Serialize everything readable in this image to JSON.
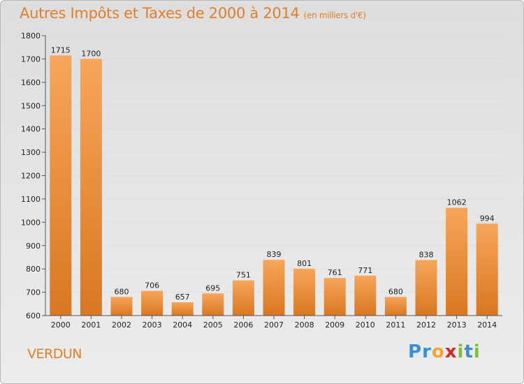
{
  "title": "Autres Impôts et Taxes de 2000 à 2014",
  "subtitle": "(en milliers d'€)",
  "city": "VERDUN",
  "logo": {
    "text": "Proxiti",
    "letters": [
      {
        "ch": "P",
        "color": "#3a8fd6"
      },
      {
        "ch": "r",
        "color": "#3a8fd6"
      },
      {
        "ch": "o",
        "color": "#f2a531"
      },
      {
        "ch": "x",
        "color": "#d6282a"
      },
      {
        "ch": "i",
        "color": "#7cbf3a"
      },
      {
        "ch": "t",
        "color": "#3a8fd6"
      },
      {
        "ch": "i",
        "color": "#7cbf3a"
      }
    ]
  },
  "colors": {
    "accent": "#e07f2a",
    "bar_light": "#f7a65a",
    "bar_dark": "#d97720"
  },
  "chart_data": {
    "type": "bar",
    "title": "Autres Impôts et Taxes de 2000 à 2014",
    "subtitle": "(en milliers d'€)",
    "categories": [
      "2000",
      "2001",
      "2002",
      "2003",
      "2004",
      "2005",
      "2006",
      "2007",
      "2008",
      "2009",
      "2010",
      "2011",
      "2012",
      "2013",
      "2014"
    ],
    "values": [
      1715,
      1700,
      680,
      706,
      657,
      695,
      751,
      839,
      801,
      761,
      771,
      680,
      838,
      1062,
      994
    ],
    "ylim": [
      600,
      1800
    ],
    "yticks": [
      600,
      700,
      800,
      900,
      1000,
      1100,
      1200,
      1300,
      1400,
      1500,
      1600,
      1700,
      1800
    ],
    "grid": true,
    "xlabel": "",
    "ylabel": ""
  }
}
